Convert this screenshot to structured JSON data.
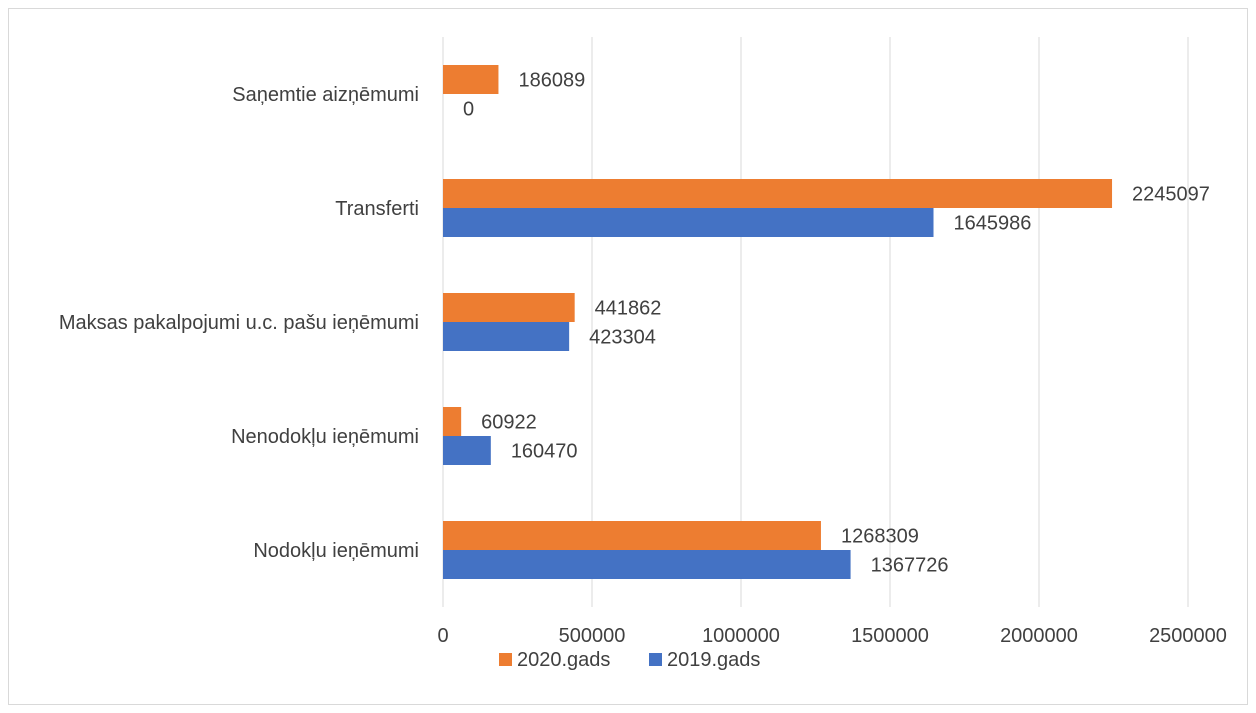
{
  "chart_data": {
    "type": "bar",
    "orientation": "horizontal",
    "categories": [
      "Saņemtie aizņēmumi",
      "Transferti",
      "Maksas pakalpojumi u.c. pašu ieņēmumi",
      "Nenodokļu ieņēmumi",
      "Nodokļu ieņēmumi"
    ],
    "series": [
      {
        "name": "2020.gads",
        "color": "#ED7D31",
        "values": [
          186089,
          2245097,
          441862,
          60922,
          1268309
        ]
      },
      {
        "name": "2019.gads",
        "color": "#4472C4",
        "values": [
          0,
          1645986,
          423304,
          160470,
          1367726
        ]
      }
    ],
    "xlim": [
      0,
      2500000
    ],
    "xticks": [
      0,
      500000,
      1000000,
      1500000,
      2000000,
      2500000
    ],
    "xtick_labels": [
      "0",
      "500000",
      "1000000",
      "1500000",
      "2000000",
      "2500000"
    ],
    "grid": true,
    "legend_position": "bottom",
    "title": "",
    "xlabel": "",
    "ylabel": ""
  }
}
